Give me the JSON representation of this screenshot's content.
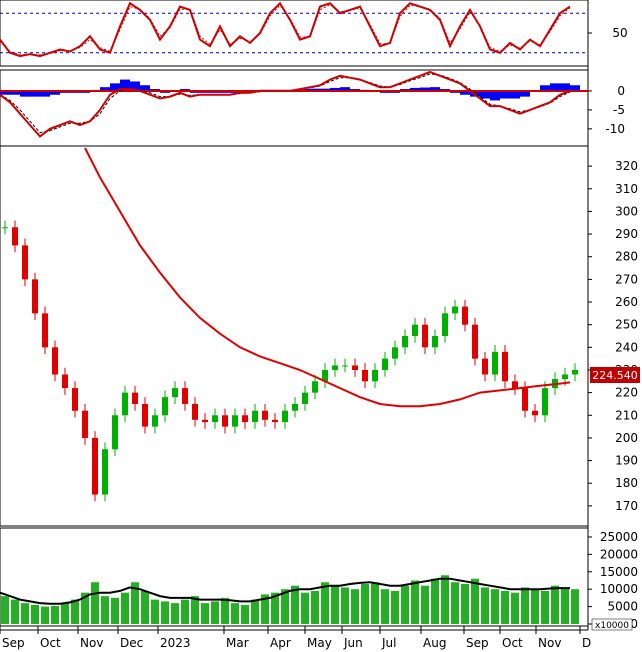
{
  "chart_data": [
    {
      "panel": "stochastic-oscillator",
      "type": "line",
      "yticks": [
        50
      ],
      "reference_lines": [
        80,
        20
      ],
      "ylim": [
        0,
        100
      ],
      "colors": {
        "k_line": "#d00000",
        "d_line": "#d00000",
        "reference": "#0000c0"
      },
      "x": [
        0,
        10,
        20,
        30,
        40,
        50,
        60,
        70,
        80,
        90,
        100,
        110,
        120,
        130,
        140,
        150,
        160,
        170,
        180,
        190,
        200,
        210,
        220,
        230,
        240,
        250,
        260,
        270,
        280,
        290,
        300,
        310,
        320,
        330,
        340,
        350,
        360,
        370,
        380,
        390,
        400,
        410,
        420,
        430,
        440,
        450,
        460,
        470,
        480,
        490,
        500,
        510,
        520,
        530,
        540,
        550,
        560,
        570
      ],
      "k_values": [
        40,
        20,
        15,
        18,
        15,
        20,
        25,
        22,
        30,
        45,
        25,
        20,
        60,
        95,
        85,
        70,
        40,
        60,
        90,
        85,
        40,
        30,
        60,
        30,
        45,
        35,
        50,
        80,
        95,
        70,
        40,
        45,
        90,
        95,
        80,
        85,
        90,
        60,
        30,
        35,
        80,
        95,
        90,
        85,
        70,
        30,
        60,
        85,
        60,
        25,
        20,
        35,
        25,
        40,
        30,
        55,
        80,
        90
      ],
      "d_values": [
        38,
        22,
        17,
        17,
        17,
        19,
        23,
        23,
        28,
        40,
        28,
        22,
        55,
        90,
        86,
        72,
        45,
        58,
        86,
        86,
        45,
        33,
        55,
        33,
        42,
        37,
        48,
        76,
        92,
        72,
        44,
        44,
        85,
        93,
        82,
        84,
        88,
        63,
        34,
        34,
        75,
        92,
        90,
        86,
        72,
        35,
        56,
        82,
        62,
        28,
        22,
        32,
        27,
        38,
        32,
        52,
        76,
        88
      ]
    },
    {
      "panel": "macd",
      "type": "line",
      "yticks": [
        0,
        -5,
        -10
      ],
      "ylim": [
        -14,
        5
      ],
      "colors": {
        "macd": "#d00000",
        "signal": "#000000",
        "histogram": "#0000ff"
      },
      "x": [
        0,
        10,
        20,
        30,
        40,
        50,
        60,
        70,
        80,
        90,
        100,
        110,
        120,
        130,
        140,
        150,
        160,
        170,
        180,
        190,
        200,
        210,
        220,
        230,
        240,
        250,
        260,
        270,
        280,
        290,
        300,
        310,
        320,
        330,
        340,
        350,
        360,
        370,
        380,
        390,
        400,
        410,
        420,
        430,
        440,
        450,
        460,
        470,
        480,
        490,
        500,
        510,
        520,
        530,
        540,
        550,
        560,
        570
      ],
      "macd_values": [
        -1,
        -3,
        -6,
        -9,
        -12,
        -10,
        -9,
        -8,
        -9,
        -8,
        -5,
        -1,
        0.5,
        0.5,
        0,
        -1,
        -2,
        -1.5,
        -0.5,
        -1.5,
        -1,
        -1,
        -1,
        -1,
        -0.5,
        -0.5,
        0,
        0,
        0,
        0,
        0.5,
        1,
        1.5,
        3,
        4,
        3.5,
        3,
        2,
        1,
        1,
        2,
        3,
        4,
        5,
        4,
        3,
        2,
        0,
        -2,
        -4,
        -4,
        -5,
        -6,
        -5,
        -4,
        -3,
        -1,
        0
      ],
      "signal_values": [
        -1,
        -2.5,
        -5,
        -8,
        -11,
        -10.5,
        -9.5,
        -8.5,
        -8.5,
        -8,
        -6,
        -2,
        0,
        0.5,
        0.2,
        -0.5,
        -1.5,
        -1.5,
        -0.8,
        -1.2,
        -1,
        -1,
        -1,
        -1,
        -0.7,
        -0.5,
        -0.2,
        0,
        0,
        0,
        0.3,
        0.8,
        1.3,
        2.5,
        3.5,
        3.5,
        3,
        2.2,
        1.3,
        1,
        1.7,
        2.7,
        3.5,
        4.5,
        4.2,
        3.3,
        2.2,
        0.5,
        -1.5,
        -3.5,
        -4,
        -4.7,
        -5.5,
        -5,
        -4.2,
        -3.2,
        -1.5,
        -0.3
      ],
      "histogram_values": [
        -1,
        -1,
        -1.5,
        -1.5,
        -1.5,
        -1,
        -0.5,
        -0.5,
        -0.5,
        0,
        1,
        2,
        3,
        2.5,
        1.5,
        0.5,
        -0.5,
        0,
        0.5,
        -0.5,
        -0.5,
        -0.5,
        -0.5,
        -0.5,
        0,
        0,
        0.3,
        0.3,
        0.3,
        0.3,
        0.5,
        0.6,
        0.6,
        0.8,
        1,
        0.5,
        0.3,
        0,
        -0.5,
        -0.5,
        0.5,
        0.8,
        0.9,
        1,
        0.5,
        -0.5,
        -1,
        -1.5,
        -2,
        -2.5,
        -2,
        -2,
        -1.5,
        0,
        1.5,
        2,
        2,
        1.5
      ]
    },
    {
      "panel": "price",
      "type": "candlestick",
      "yticks": [
        320,
        310,
        300,
        290,
        280,
        270,
        260,
        250,
        240,
        230,
        220,
        210,
        200,
        190,
        180,
        170
      ],
      "ylim": [
        162,
        328
      ],
      "last_price_label": "224.540",
      "colors": {
        "up": "#00b000",
        "down": "#e00000",
        "moving_average": "#e00000",
        "label_bg": "#c00000",
        "label_text": "#ffffff"
      },
      "x": [
        0,
        10,
        20,
        30,
        40,
        50,
        60,
        70,
        80,
        90,
        100,
        110,
        120,
        130,
        140,
        150,
        160,
        170,
        180,
        190,
        200,
        210,
        220,
        230,
        240,
        250,
        260,
        270,
        280,
        290,
        300,
        310,
        320,
        330,
        340,
        350,
        360,
        370,
        380,
        390,
        400,
        410,
        420,
        430,
        440,
        450,
        460,
        470,
        480,
        490,
        500,
        510,
        520,
        530,
        540,
        550,
        560,
        570
      ],
      "close_values": [
        293,
        285,
        270,
        255,
        240,
        228,
        222,
        212,
        200,
        175,
        195,
        210,
        220,
        215,
        205,
        210,
        218,
        222,
        215,
        208,
        207,
        210,
        205,
        210,
        207,
        212,
        208,
        207,
        212,
        215,
        220,
        225,
        230,
        232,
        232,
        230,
        225,
        230,
        235,
        240,
        245,
        250,
        240,
        245,
        255,
        258,
        250,
        235,
        228,
        238,
        225,
        222,
        212,
        210,
        222,
        226,
        228,
        230
      ],
      "ma_x": [
        85,
        100,
        120,
        140,
        160,
        180,
        200,
        220,
        240,
        260,
        280,
        300,
        320,
        340,
        360,
        380,
        400,
        420,
        440,
        460,
        480,
        500,
        520,
        540,
        560,
        570
      ],
      "ma_values": [
        328,
        315,
        300,
        285,
        273,
        262,
        253,
        246,
        240,
        236,
        233,
        230,
        226,
        222,
        218,
        215,
        214,
        214,
        215,
        217,
        220,
        221,
        222,
        223,
        224,
        224.5
      ]
    },
    {
      "panel": "volume",
      "type": "bar",
      "yticks": [
        25000,
        20000,
        15000,
        10000,
        5000,
        0
      ],
      "ylim": [
        0,
        27000
      ],
      "scale_label": "x10000",
      "colors": {
        "bars": "#00a000",
        "average": "#000000"
      },
      "x": [
        0,
        10,
        20,
        30,
        40,
        50,
        60,
        70,
        80,
        90,
        100,
        110,
        120,
        130,
        140,
        150,
        160,
        170,
        180,
        190,
        200,
        210,
        220,
        230,
        240,
        250,
        260,
        270,
        280,
        290,
        300,
        310,
        320,
        330,
        340,
        350,
        360,
        370,
        380,
        390,
        400,
        410,
        420,
        430,
        440,
        450,
        460,
        470,
        480,
        490,
        500,
        510,
        520,
        530,
        540,
        550,
        560,
        570
      ],
      "values": [
        8000,
        7000,
        6000,
        5500,
        5000,
        5200,
        6000,
        7000,
        9000,
        12000,
        8000,
        7500,
        9000,
        12000,
        9500,
        7000,
        6500,
        6000,
        7000,
        8000,
        6000,
        6500,
        7500,
        6000,
        5500,
        7000,
        8500,
        9000,
        10000,
        11000,
        9000,
        9500,
        12000,
        11000,
        10500,
        10000,
        11500,
        12000,
        10000,
        9500,
        11000,
        12500,
        11000,
        13000,
        14000,
        12000,
        11500,
        13000,
        10500,
        10000,
        9500,
        9000,
        10500,
        10000,
        9500,
        11000,
        10500,
        10000
      ],
      "average_values": [
        9000,
        8000,
        7000,
        6500,
        6000,
        5800,
        5800,
        6200,
        7000,
        8500,
        9000,
        9000,
        9500,
        10500,
        10000,
        9000,
        8000,
        7500,
        7500,
        7500,
        7000,
        7000,
        7000,
        6800,
        6500,
        6500,
        7000,
        7500,
        8500,
        9500,
        10000,
        10000,
        10500,
        11000,
        11000,
        11500,
        11800,
        12000,
        11500,
        11000,
        11000,
        11500,
        12000,
        12500,
        13000,
        13000,
        12500,
        12000,
        11500,
        11000,
        10500,
        10000,
        10000,
        10000,
        10000,
        10200,
        10300,
        10300
      ]
    }
  ],
  "x_axis": {
    "labels": [
      "Sep",
      "Oct",
      "Nov",
      "Dec",
      "2023",
      "Mar",
      "Apr",
      "May",
      "Jun",
      "Jul",
      "Aug",
      "Sep",
      "Oct",
      "Nov",
      "D"
    ],
    "positions": [
      0,
      38,
      78,
      118,
      158,
      224,
      268,
      305,
      342,
      380,
      421,
      464,
      500,
      536,
      580
    ]
  }
}
